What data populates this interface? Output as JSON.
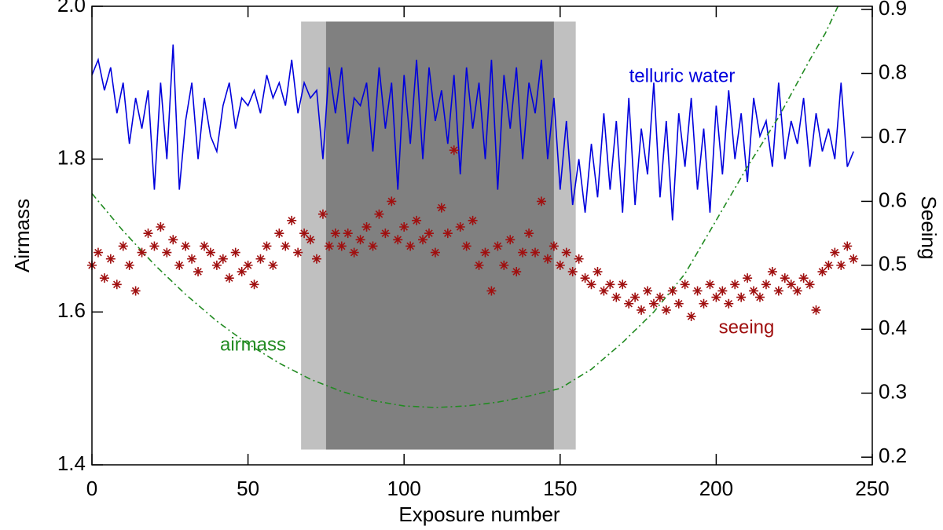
{
  "chart_data": {
    "type": "line",
    "xlabel": "Exposure number",
    "ylabel": "Airmass",
    "y2label": "Seeing",
    "xlim": [
      0,
      250
    ],
    "xticks": [
      0,
      50,
      100,
      150,
      200,
      250
    ],
    "ylim": [
      1.4,
      2.0
    ],
    "yticks": [
      1.4,
      1.6,
      1.8,
      {
        "value": 2,
        "label": "2.0"
      }
    ],
    "y2lim": [
      0.188,
      0.905
    ],
    "y2ticks": [
      0.2,
      0.3,
      0.4,
      0.5,
      0.6,
      0.7,
      0.8,
      0.9
    ],
    "shaded_regions": [
      {
        "x": [
          67,
          155
        ],
        "y": [
          1.42,
          1.98
        ],
        "color": "#c0c0c0"
      },
      {
        "x": [
          75,
          148
        ],
        "y": [
          1.42,
          1.98
        ],
        "color": "#808080"
      }
    ],
    "annotations": [
      "telluric water",
      "airmass",
      "seeing"
    ],
    "series": [
      {
        "name": "telluric water",
        "color": "#0000dd",
        "style": "solid",
        "x": [
          0,
          2,
          4,
          6,
          8,
          10,
          12,
          14,
          16,
          18,
          20,
          22,
          24,
          26,
          28,
          30,
          32,
          34,
          36,
          38,
          40,
          42,
          44,
          46,
          48,
          50,
          52,
          54,
          56,
          58,
          60,
          62,
          64,
          66,
          68,
          70,
          72,
          74,
          76,
          78,
          80,
          82,
          84,
          86,
          88,
          90,
          92,
          94,
          96,
          98,
          100,
          102,
          104,
          106,
          108,
          110,
          112,
          114,
          116,
          118,
          120,
          122,
          124,
          126,
          128,
          130,
          132,
          134,
          136,
          138,
          140,
          142,
          144,
          146,
          148,
          150,
          152,
          154,
          156,
          158,
          160,
          162,
          164,
          166,
          168,
          170,
          172,
          174,
          176,
          178,
          180,
          182,
          184,
          186,
          188,
          190,
          192,
          194,
          196,
          198,
          200,
          202,
          204,
          206,
          208,
          210,
          212,
          214,
          216,
          218,
          220,
          222,
          224,
          226,
          228,
          230,
          232,
          234,
          236,
          238,
          240,
          242,
          244
        ],
        "values": [
          1.91,
          1.93,
          1.89,
          1.92,
          1.86,
          1.9,
          1.82,
          1.88,
          1.84,
          1.89,
          1.76,
          1.9,
          1.8,
          1.95,
          1.76,
          1.85,
          1.9,
          1.8,
          1.88,
          1.83,
          1.81,
          1.87,
          1.9,
          1.84,
          1.88,
          1.87,
          1.89,
          1.86,
          1.91,
          1.88,
          1.9,
          1.87,
          1.93,
          1.86,
          1.9,
          1.88,
          1.89,
          1.8,
          1.92,
          1.86,
          1.92,
          1.82,
          1.88,
          1.87,
          1.9,
          1.81,
          1.92,
          1.84,
          1.9,
          1.76,
          1.91,
          1.82,
          1.93,
          1.8,
          1.92,
          1.85,
          1.89,
          1.82,
          1.91,
          1.78,
          1.92,
          1.84,
          1.9,
          1.8,
          1.93,
          1.76,
          1.91,
          1.84,
          1.92,
          1.8,
          1.9,
          1.86,
          1.93,
          1.8,
          1.88,
          1.76,
          1.85,
          1.74,
          1.8,
          1.73,
          1.82,
          1.75,
          1.86,
          1.76,
          1.85,
          1.73,
          1.88,
          1.74,
          1.84,
          1.78,
          1.9,
          1.75,
          1.85,
          1.72,
          1.86,
          1.79,
          1.88,
          1.76,
          1.84,
          1.73,
          1.87,
          1.78,
          1.89,
          1.8,
          1.86,
          1.77,
          1.88,
          1.83,
          1.85,
          1.79,
          1.9,
          1.8,
          1.85,
          1.82,
          1.88,
          1.79,
          1.86,
          1.81,
          1.84,
          1.8,
          1.9,
          1.79,
          1.81
        ]
      },
      {
        "name": "airmass",
        "color": "#228b22",
        "style": "dashdot",
        "x": [
          0,
          10,
          20,
          30,
          40,
          50,
          60,
          70,
          80,
          90,
          100,
          110,
          120,
          130,
          140,
          150,
          160,
          170,
          180,
          190,
          200,
          210,
          220,
          230,
          235,
          239
        ],
        "values": [
          1.755,
          1.706,
          1.662,
          1.623,
          1.588,
          1.558,
          1.533,
          1.512,
          1.496,
          1.484,
          1.477,
          1.475,
          1.477,
          1.482,
          1.49,
          1.5,
          1.525,
          1.56,
          1.6,
          1.65,
          1.72,
          1.79,
          1.855,
          1.93,
          1.965,
          2.0
        ]
      },
      {
        "name": "seeing",
        "color": "#a01010",
        "style": "asterisk",
        "axis": "y2",
        "x": [
          0,
          2,
          4,
          6,
          8,
          10,
          12,
          14,
          16,
          18,
          20,
          22,
          24,
          26,
          28,
          30,
          32,
          34,
          36,
          38,
          40,
          42,
          44,
          46,
          48,
          50,
          52,
          54,
          56,
          58,
          60,
          62,
          64,
          66,
          68,
          70,
          72,
          74,
          76,
          78,
          80,
          82,
          84,
          86,
          88,
          90,
          92,
          94,
          96,
          98,
          100,
          102,
          104,
          106,
          108,
          110,
          112,
          114,
          116,
          118,
          120,
          122,
          124,
          126,
          128,
          130,
          132,
          134,
          136,
          138,
          140,
          142,
          144,
          146,
          148,
          150,
          152,
          154,
          156,
          158,
          160,
          162,
          164,
          166,
          168,
          170,
          172,
          174,
          176,
          178,
          180,
          182,
          184,
          186,
          188,
          190,
          192,
          194,
          196,
          198,
          200,
          202,
          204,
          206,
          208,
          210,
          212,
          214,
          216,
          218,
          220,
          222,
          224,
          226,
          228,
          230,
          232,
          234,
          236,
          238,
          240,
          242,
          244
        ],
        "values": [
          0.5,
          0.52,
          0.48,
          0.51,
          0.47,
          0.53,
          0.5,
          0.46,
          0.52,
          0.55,
          0.53,
          0.56,
          0.52,
          0.54,
          0.5,
          0.53,
          0.51,
          0.49,
          0.53,
          0.52,
          0.5,
          0.51,
          0.48,
          0.52,
          0.49,
          0.5,
          0.47,
          0.51,
          0.53,
          0.5,
          0.55,
          0.53,
          0.57,
          0.52,
          0.55,
          0.54,
          0.51,
          0.58,
          0.53,
          0.55,
          0.53,
          0.55,
          0.52,
          0.54,
          0.56,
          0.53,
          0.58,
          0.55,
          0.6,
          0.54,
          0.56,
          0.53,
          0.57,
          0.54,
          0.55,
          0.52,
          0.59,
          0.55,
          0.68,
          0.56,
          0.53,
          0.57,
          0.5,
          0.52,
          0.46,
          0.53,
          0.5,
          0.54,
          0.49,
          0.52,
          0.55,
          0.52,
          0.6,
          0.51,
          0.53,
          0.5,
          0.52,
          0.49,
          0.51,
          0.48,
          0.47,
          0.49,
          0.46,
          0.47,
          0.45,
          0.47,
          0.44,
          0.45,
          0.43,
          0.46,
          0.44,
          0.45,
          0.43,
          0.46,
          0.44,
          0.47,
          0.42,
          0.46,
          0.44,
          0.47,
          0.45,
          0.46,
          0.44,
          0.47,
          0.45,
          0.48,
          0.46,
          0.45,
          0.47,
          0.49,
          0.46,
          0.48,
          0.47,
          0.46,
          0.48,
          0.47,
          0.43,
          0.49,
          0.5,
          0.52,
          0.5,
          0.53,
          0.51
        ]
      }
    ]
  }
}
